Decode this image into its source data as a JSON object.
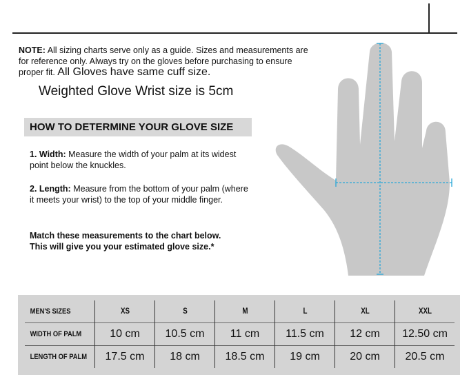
{
  "note": {
    "label": "NOTE:",
    "text": "All sizing charts serve only as a guide. Sizes and measurements are for reference only. Always try on the gloves before purchasing to ensure proper fit.",
    "cuff": "All Gloves have same cuff size.",
    "wrist": "Weighted Glove Wrist size is 5cm"
  },
  "howto": {
    "title": "HOW TO DETERMINE YOUR GLOVE SIZE",
    "step1_label": "1. Width:",
    "step1_text": "Measure the width of your palm at its widest point below the knuckles.",
    "step2_label": "2. Length:",
    "step2_text": "Measure from the bottom of your palm (where it meets your wrist) to the top of your middle finger.",
    "match1": "Match these measurements to the chart below.",
    "match2": "This will give you your estimated glove size.*"
  },
  "colors": {
    "arrow": "#2aa7d8",
    "hand": "#c8c8c8",
    "table_bg": "#d4d4d4"
  },
  "table": {
    "header": [
      "MEN'S SIZES",
      "XS",
      "S",
      "M",
      "L",
      "XL",
      "XXL"
    ],
    "rows": [
      [
        "WIDTH OF PALM",
        "10 cm",
        "10.5 cm",
        "11 cm",
        "11.5 cm",
        "12 cm",
        "12.50 cm"
      ],
      [
        "LENGTH OF PALM",
        "17.5 cm",
        "18 cm",
        "18.5 cm",
        "19 cm",
        "20 cm",
        "20.5 cm"
      ]
    ]
  }
}
